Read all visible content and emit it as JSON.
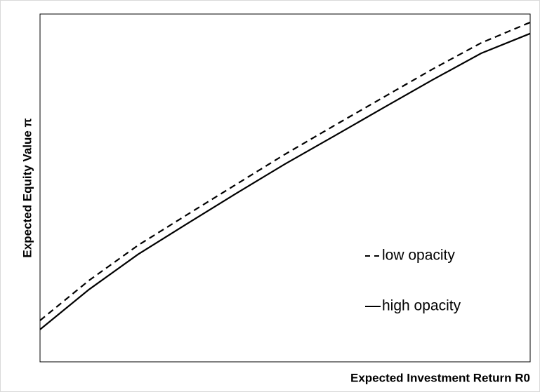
{
  "chart_data": {
    "type": "line",
    "x_label": "Expected Investment Return R0",
    "y_label": "Expected Equity Value π",
    "x": [
      0,
      10,
      20,
      30,
      40,
      50,
      60,
      70,
      80,
      90,
      100
    ],
    "series": [
      {
        "name": "low opacity",
        "color": "#000000",
        "dash": "dashed",
        "values": [
          11.9,
          23.4,
          33.5,
          42.3,
          51.0,
          59.7,
          67.9,
          76.0,
          84.1,
          91.7,
          97.6
        ]
      },
      {
        "name": "high opacity",
        "color": "#000000",
        "dash": "solid",
        "values": [
          9.3,
          20.8,
          30.9,
          39.7,
          48.4,
          56.9,
          64.9,
          73.0,
          81.0,
          88.7,
          94.4
        ]
      }
    ],
    "xlim": [
      0,
      100
    ],
    "ylim": [
      0,
      100
    ],
    "grid": false,
    "legend": "center right"
  }
}
